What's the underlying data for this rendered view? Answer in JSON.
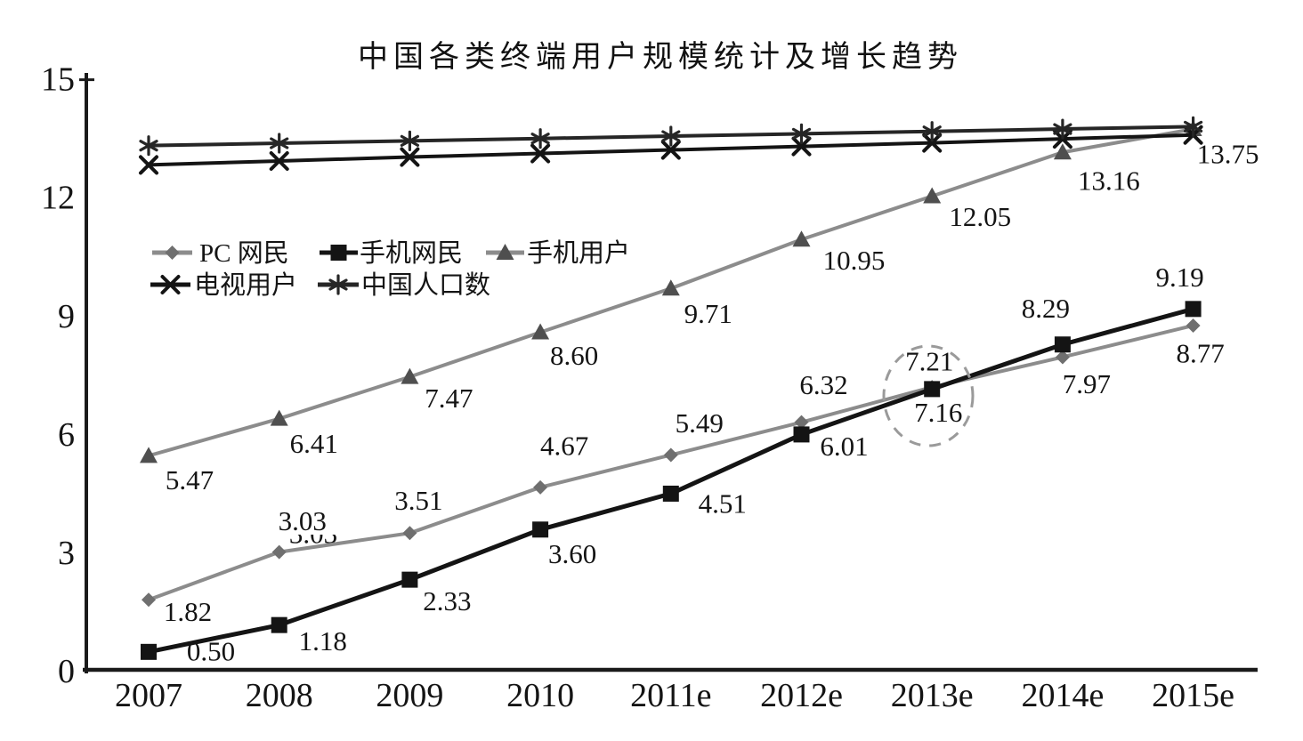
{
  "chart_data": {
    "type": "line",
    "title": "中国各类终端用户规模统计及增长趋势",
    "categories": [
      "2007",
      "2008",
      "2009",
      "2010",
      "2011e",
      "2012e",
      "2013e",
      "2014e",
      "2015e"
    ],
    "ylim": [
      0,
      15
    ],
    "yticks": [
      0,
      3,
      6,
      9,
      12,
      15
    ],
    "grid": false,
    "legend_position": "inside-top-left-two-rows-no-border",
    "series": [
      {
        "name": "PC 网民",
        "marker": "diamond",
        "color": "#8c8c8c",
        "marker_color": "#6f6f6f",
        "line_width": 4,
        "values": [
          1.82,
          3.03,
          3.51,
          4.67,
          5.49,
          6.32,
          7.21,
          7.97,
          8.77
        ],
        "labels": [
          "1.82",
          "3.03",
          "3.51",
          "4.67",
          "5.49",
          "6.32",
          "7.21",
          "7.97",
          "8.77"
        ],
        "label_offsets": [
          [
            44,
            13
          ],
          [
            26,
            -35
          ],
          [
            10,
            -37
          ],
          [
            27,
            -47
          ],
          [
            32,
            -36
          ],
          [
            25,
            -42
          ],
          [
            -3,
            -29
          ],
          [
            27,
            30
          ],
          [
            8,
            31
          ]
        ]
      },
      {
        "name": "手机网民",
        "marker": "square",
        "color": "#141414",
        "marker_color": "#141414",
        "line_width": 5,
        "values": [
          0.5,
          1.18,
          2.33,
          3.6,
          4.51,
          6.01,
          7.16,
          8.29,
          9.19
        ],
        "labels": [
          "0.50",
          "1.18",
          "2.33",
          "3.60",
          "4.51",
          "6.01",
          "7.16",
          "8.29",
          "9.19"
        ],
        "label_offsets": [
          [
            70,
            -1
          ],
          [
            49,
            18
          ],
          [
            42,
            24
          ],
          [
            36,
            27
          ],
          [
            58,
            11
          ],
          [
            48,
            13
          ],
          [
            7,
            26
          ],
          [
            -19,
            -41
          ],
          [
            -15,
            -36
          ]
        ]
      },
      {
        "name": "手机用户",
        "marker": "triangle",
        "color": "#8c8c8c",
        "marker_color": "#4f4f4f",
        "line_width": 4,
        "values": [
          5.47,
          6.41,
          7.47,
          8.6,
          9.71,
          10.95,
          12.05,
          13.16,
          13.75
        ],
        "labels": [
          "5.47",
          "6.41",
          "7.47",
          "8.60",
          "9.71",
          "10.95",
          "12.05",
          "13.16",
          "13.75"
        ],
        "label_offsets": [
          [
            46,
            27
          ],
          [
            39,
            28
          ],
          [
            44,
            24
          ],
          [
            38,
            26
          ],
          [
            42,
            28
          ],
          [
            59,
            23
          ],
          [
            54,
            23
          ],
          [
            52,
            32
          ],
          [
            39,
            28
          ]
        ]
      },
      {
        "name": "电视用户",
        "marker": "x",
        "color": "#141414",
        "marker_color": "#141414",
        "line_width": 4,
        "values": [
          12.84,
          12.94,
          13.04,
          13.13,
          13.22,
          13.31,
          13.4,
          13.5,
          13.6
        ],
        "labels": null,
        "estimated": true
      },
      {
        "name": "中国人口数",
        "marker": "asterisk",
        "color": "#262626",
        "marker_color": "#262626",
        "line_width": 4,
        "values": [
          13.33,
          13.39,
          13.45,
          13.51,
          13.57,
          13.63,
          13.69,
          13.75,
          13.81
        ],
        "labels": null,
        "estimated": true
      }
    ],
    "annotation_circle": {
      "category": "2013e",
      "around_labels": [
        "7.21",
        "7.16"
      ],
      "style": "dashed-gray"
    },
    "occluded_label_fragment": {
      "text": "3.03",
      "near_category": "2008",
      "series": "PC 网民"
    }
  }
}
